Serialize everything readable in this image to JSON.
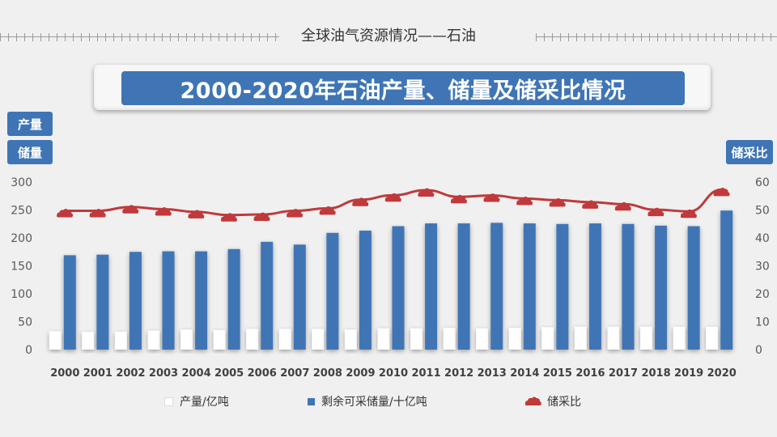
{
  "header": {
    "section_title": "全球油气资源情况——石油",
    "main_title": "2000-2020年石油产量、储量及储采比情况"
  },
  "axis_tags": {
    "left_top": "产量",
    "left_bottom": "储量",
    "right": "储采比"
  },
  "legend": {
    "production": "产量/亿吨",
    "reserves": "剩余可采储量/十亿吨",
    "rp_ratio": "储采比"
  },
  "colors": {
    "reserves": "#3f75b5",
    "production": "#ffffff",
    "rp_ratio": "#c0393b"
  },
  "chart_data": {
    "type": "bar",
    "categories": [
      "2000",
      "2001",
      "2002",
      "2003",
      "2004",
      "2005",
      "2006",
      "2007",
      "2008",
      "2009",
      "2010",
      "2011",
      "2012",
      "2013",
      "2014",
      "2015",
      "2016",
      "2017",
      "2018",
      "2019",
      "2020"
    ],
    "series": [
      {
        "name": "产量/亿吨",
        "type": "bar",
        "axis": "left",
        "values": [
          33,
          32,
          32,
          34,
          36,
          35,
          37,
          37,
          37,
          36,
          38,
          38,
          39,
          38,
          39,
          40,
          41,
          41,
          41,
          41,
          41
        ]
      },
      {
        "name": "剩余可采储量/十亿吨",
        "type": "bar",
        "axis": "left",
        "values": [
          169,
          170,
          175,
          176,
          176,
          180,
          193,
          188,
          209,
          213,
          221,
          226,
          226,
          227,
          226,
          225,
          226,
          225,
          222,
          221,
          249
        ]
      },
      {
        "name": "储采比",
        "type": "line",
        "axis": "right",
        "values": [
          49.7,
          49.7,
          51.1,
          50.3,
          49.3,
          48.2,
          48.4,
          49.7,
          50.6,
          53.7,
          55.3,
          57.1,
          54.7,
          55.2,
          54.1,
          53.5,
          52.8,
          52.1,
          50.1,
          49.5,
          57.3
        ]
      }
    ],
    "yleft": {
      "ticks": [
        0,
        50,
        100,
        150,
        200,
        250,
        300
      ],
      "lim": [
        0,
        300
      ]
    },
    "yright": {
      "ticks": [
        0,
        10,
        20,
        30,
        40,
        50,
        60
      ],
      "lim": [
        0,
        60
      ]
    }
  }
}
